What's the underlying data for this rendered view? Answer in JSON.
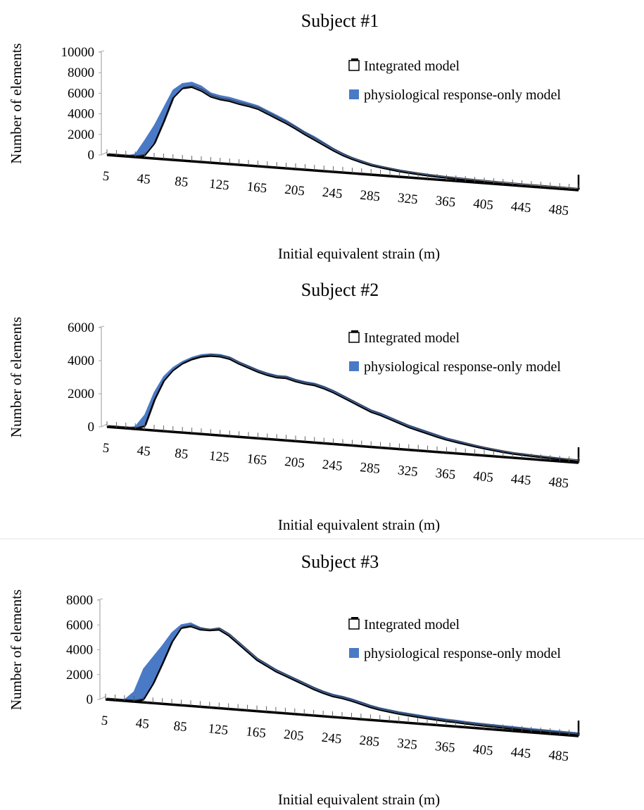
{
  "chart_data": [
    {
      "type": "area",
      "title": "Subject #1",
      "xlabel": "Initial equivalent strain  (m)",
      "ylabel": "Number of elements",
      "yticks": [
        "0",
        "2000",
        "4000",
        "6000",
        "8000",
        "10000"
      ],
      "ylim": [
        0,
        10000
      ],
      "xtick_labels": [
        "5",
        "45",
        "85",
        "125",
        "165",
        "205",
        "245",
        "285",
        "325",
        "365",
        "405",
        "445",
        "485"
      ],
      "legend": [
        "Integrated model",
        "physiological response-only model"
      ],
      "legend_position": "top-right",
      "colors": {
        "physiological": "#4a7ac6",
        "integrated": "#000000"
      },
      "x": [
        5,
        15,
        25,
        35,
        45,
        55,
        65,
        75,
        85,
        95,
        105,
        115,
        125,
        135,
        145,
        155,
        165,
        175,
        185,
        195,
        205,
        215,
        225,
        235,
        245,
        255,
        265,
        275,
        285,
        295,
        305,
        315,
        325,
        335,
        345,
        355,
        365,
        375,
        385,
        395,
        405,
        415,
        425,
        435,
        445,
        455,
        465,
        475,
        485,
        495,
        505
      ],
      "series": [
        {
          "name": "physiological response-only model",
          "values": [
            0,
            10,
            50,
            300,
            1700,
            3200,
            5000,
            6800,
            7500,
            7700,
            7400,
            6800,
            6600,
            6500,
            6300,
            6100,
            5900,
            5500,
            5100,
            4700,
            4200,
            3700,
            3300,
            2800,
            2300,
            1900,
            1550,
            1300,
            1050,
            900,
            760,
            640,
            540,
            460,
            390,
            340,
            300,
            260,
            230,
            200,
            180,
            160,
            140,
            125,
            115,
            105,
            100,
            95,
            85,
            80,
            70
          ]
        },
        {
          "name": "Integrated model",
          "values": [
            0,
            0,
            0,
            0,
            200,
            1400,
            3600,
            6000,
            7000,
            7200,
            6900,
            6400,
            6200,
            6100,
            5900,
            5750,
            5550,
            5150,
            4750,
            4350,
            3900,
            3400,
            2950,
            2500,
            2050,
            1650,
            1350,
            1100,
            880,
            740,
            620,
            510,
            430,
            360,
            300,
            260,
            220,
            190,
            165,
            145,
            125,
            110,
            95,
            80,
            70,
            60,
            55,
            50,
            45,
            40,
            30
          ]
        }
      ]
    },
    {
      "type": "area",
      "title": "Subject #2",
      "xlabel": "Initial equivalent strain  (m)",
      "ylabel": "Number of elements",
      "yticks": [
        "0",
        "2000",
        "4000",
        "6000"
      ],
      "ylim": [
        0,
        6000
      ],
      "xtick_labels": [
        "5",
        "45",
        "85",
        "125",
        "165",
        "205",
        "245",
        "285",
        "325",
        "365",
        "405",
        "445",
        "485"
      ],
      "legend": [
        "Integrated model",
        "physiological response-only model"
      ],
      "legend_position": "top-right",
      "colors": {
        "physiological": "#4a7ac6",
        "integrated": "#000000"
      },
      "x": [
        5,
        15,
        25,
        35,
        45,
        55,
        65,
        75,
        85,
        95,
        105,
        115,
        125,
        135,
        145,
        155,
        165,
        175,
        185,
        195,
        205,
        215,
        225,
        235,
        245,
        255,
        265,
        275,
        285,
        295,
        305,
        315,
        325,
        335,
        345,
        355,
        365,
        375,
        385,
        395,
        405,
        415,
        425,
        435,
        445,
        455,
        465,
        475,
        485,
        495,
        505
      ],
      "series": [
        {
          "name": "physiological response-only model",
          "values": [
            0,
            10,
            30,
            150,
            900,
            2300,
            3300,
            3900,
            4300,
            4600,
            4800,
            4900,
            4900,
            4800,
            4550,
            4350,
            4150,
            4000,
            3900,
            3900,
            3750,
            3650,
            3600,
            3450,
            3250,
            3000,
            2750,
            2500,
            2250,
            2100,
            1900,
            1700,
            1500,
            1350,
            1200,
            1050,
            900,
            800,
            700,
            600,
            500,
            420,
            360,
            310,
            270,
            230,
            200,
            180,
            160,
            140,
            120
          ]
        },
        {
          "name": "Integrated model",
          "values": [
            0,
            0,
            0,
            0,
            200,
            1800,
            3000,
            3700,
            4150,
            4450,
            4650,
            4750,
            4750,
            4650,
            4400,
            4200,
            4000,
            3850,
            3750,
            3750,
            3600,
            3500,
            3450,
            3300,
            3100,
            2850,
            2600,
            2350,
            2100,
            1950,
            1750,
            1550,
            1350,
            1200,
            1050,
            900,
            770,
            670,
            580,
            490,
            410,
            340,
            280,
            230,
            200,
            170,
            150,
            130,
            110,
            95,
            80
          ]
        }
      ]
    },
    {
      "type": "area",
      "title": "Subject #3",
      "xlabel": "Initial equivalent strain  (m)",
      "ylabel": "Number of elements",
      "yticks": [
        "0",
        "2000",
        "4000",
        "6000",
        "8000"
      ],
      "ylim": [
        0,
        8000
      ],
      "xtick_labels": [
        "5",
        "45",
        "85",
        "125",
        "165",
        "205",
        "245",
        "285",
        "325",
        "365",
        "405",
        "445",
        "485"
      ],
      "legend": [
        "Integrated model",
        "physiological response-only model"
      ],
      "legend_position": "top-right",
      "colors": {
        "physiological": "#4a7ac6",
        "integrated": "#000000"
      },
      "x": [
        5,
        15,
        25,
        35,
        45,
        55,
        65,
        75,
        85,
        95,
        105,
        115,
        125,
        135,
        145,
        155,
        165,
        175,
        185,
        195,
        205,
        215,
        225,
        235,
        245,
        255,
        265,
        275,
        285,
        295,
        305,
        315,
        325,
        335,
        345,
        355,
        365,
        375,
        385,
        395,
        405,
        415,
        425,
        435,
        445,
        455,
        465,
        475,
        485,
        495,
        505
      ],
      "series": [
        {
          "name": "physiological response-only model",
          "values": [
            0,
            20,
            100,
            800,
            2700,
            3700,
            4700,
            5800,
            6500,
            6700,
            6400,
            6300,
            6500,
            6100,
            5500,
            4900,
            4300,
            3900,
            3500,
            3200,
            2900,
            2600,
            2300,
            2050,
            1850,
            1750,
            1600,
            1400,
            1200,
            1050,
            950,
            850,
            780,
            720,
            650,
            600,
            550,
            520,
            480,
            440,
            420,
            400,
            380,
            360,
            340,
            320,
            310,
            300,
            290,
            280,
            270
          ]
        },
        {
          "name": "Integrated model",
          "values": [
            0,
            0,
            0,
            0,
            200,
            1500,
            3200,
            5000,
            6200,
            6400,
            6200,
            6200,
            6300,
            5900,
            5300,
            4700,
            4100,
            3700,
            3300,
            3000,
            2700,
            2400,
            2100,
            1850,
            1650,
            1550,
            1400,
            1200,
            1000,
            850,
            750,
            650,
            580,
            520,
            450,
            400,
            350,
            320,
            280,
            240,
            220,
            200,
            180,
            160,
            140,
            120,
            110,
            100,
            90,
            80,
            70
          ]
        }
      ]
    }
  ]
}
